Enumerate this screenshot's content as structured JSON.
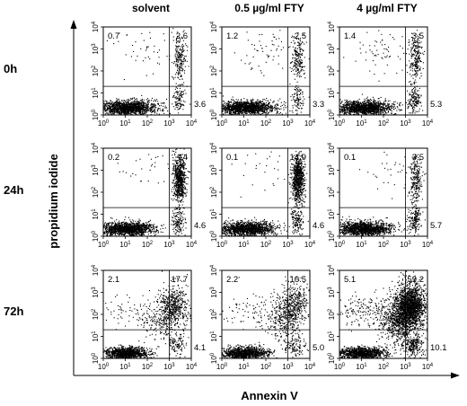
{
  "figure": {
    "conditions": [
      "solvent",
      "0.5 µg/ml FTY",
      "4 µg/ml FTY"
    ],
    "timepoints": [
      "0h",
      "24h",
      "72h"
    ],
    "ylabel": "propidium iodide",
    "xlabel": "Annexin V"
  },
  "chart_data": {
    "type": "scatter",
    "subtype": "flow-cytometry-quadrant-dot-plots",
    "layout": "3 rows (timepoints) x 3 columns (conditions)",
    "x_axis": {
      "label": "Annexin V",
      "scale": "log",
      "range": [
        1,
        10000
      ],
      "tick_values": [
        1,
        10,
        100,
        1000,
        10000
      ],
      "tick_base": [
        "10",
        "10",
        "10",
        "10",
        "10"
      ],
      "tick_exp": [
        "0",
        "1",
        "2",
        "3",
        "4"
      ]
    },
    "y_axis": {
      "label": "propidium iodide",
      "scale": "log",
      "range": [
        1,
        10000
      ],
      "tick_values": [
        1,
        10,
        100,
        1000,
        10000
      ],
      "tick_base": [
        "10",
        "10",
        "10",
        "10",
        "10"
      ],
      "tick_exp": [
        "0",
        "1",
        "2",
        "3",
        "4"
      ]
    },
    "quadrant_gate": {
      "x": 1000,
      "y": 20
    },
    "panels": [
      {
        "time": "0h",
        "condition": "solvent",
        "upper_left": "0.7",
        "upper_right": "2.6",
        "lower_right": "3.6"
      },
      {
        "time": "0h",
        "condition": "0.5 µg/ml FTY",
        "upper_left": "1.2",
        "upper_right": "2.5",
        "lower_right": "3.3"
      },
      {
        "time": "0h",
        "condition": "4 µg/ml FTY",
        "upper_left": "1.4",
        "upper_right": "3.5",
        "lower_right": "5.3"
      },
      {
        "time": "24h",
        "condition": "solvent",
        "upper_left": "0.2",
        "upper_right": "14",
        "lower_right": "4.6"
      },
      {
        "time": "24h",
        "condition": "0.5 µg/ml FTY",
        "upper_left": "0.1",
        "upper_right": "14.9",
        "lower_right": "4.6"
      },
      {
        "time": "24h",
        "condition": "4 µg/ml FTY",
        "upper_left": "0.1",
        "upper_right": "3.5",
        "lower_right": "5.7"
      },
      {
        "time": "72h",
        "condition": "solvent",
        "upper_left": "2.1",
        "upper_right": "17.7",
        "lower_right": "4.1"
      },
      {
        "time": "72h",
        "condition": "0.5 µg/ml FTY",
        "upper_left": "2.2",
        "upper_right": "16.5",
        "lower_right": "5.0"
      },
      {
        "time": "72h",
        "condition": "4 µg/ml FTY",
        "upper_left": "5.1",
        "upper_right": "59.2",
        "lower_right": "10.1"
      }
    ]
  }
}
